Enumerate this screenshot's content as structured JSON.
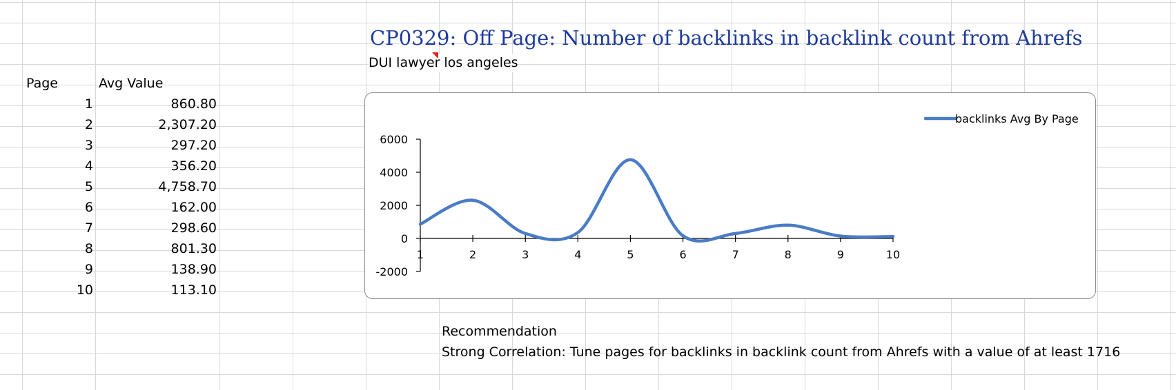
{
  "sheet": {
    "table": {
      "headers": [
        "Page",
        "Avg Value"
      ],
      "rows": [
        {
          "page": "1",
          "value": "860.80"
        },
        {
          "page": "2",
          "value": "2,307.20"
        },
        {
          "page": "3",
          "value": "297.20"
        },
        {
          "page": "4",
          "value": "356.20"
        },
        {
          "page": "5",
          "value": "4,758.70"
        },
        {
          "page": "6",
          "value": "162.00"
        },
        {
          "page": "7",
          "value": "298.60"
        },
        {
          "page": "8",
          "value": "801.30"
        },
        {
          "page": "9",
          "value": "138.90"
        },
        {
          "page": "10",
          "value": "113.10"
        }
      ]
    },
    "title": "CP0329: Off Page: Number of backlinks in backlink count from Ahrefs",
    "subtitle": "DUI lawyer los angeles",
    "recommendation": {
      "heading": "Recommendation",
      "text": "Strong Correlation: Tune pages for backlinks in backlink count from Ahrefs with a value of at least 1716"
    }
  },
  "colors": {
    "series": "#4a7cc6",
    "title": "#1f3b9c",
    "gridline": "#d9d9d9",
    "comment_marker": "#e0201b"
  },
  "chart_data": {
    "type": "line",
    "smooth": true,
    "x": [
      1,
      2,
      3,
      4,
      5,
      6,
      7,
      8,
      9,
      10
    ],
    "series": [
      {
        "name": "backlinks Avg By Page",
        "values": [
          860.8,
          2307.2,
          297.2,
          356.2,
          4758.7,
          162.0,
          298.6,
          801.3,
          138.9,
          113.1
        ]
      }
    ],
    "ylim": [
      -2000,
      6000
    ],
    "yticks": [
      -2000,
      0,
      2000,
      4000,
      6000
    ],
    "xticks": [
      "1",
      "2",
      "3",
      "4",
      "5",
      "6",
      "7",
      "8",
      "9",
      "10"
    ],
    "legend": "top-right",
    "grid": false
  }
}
